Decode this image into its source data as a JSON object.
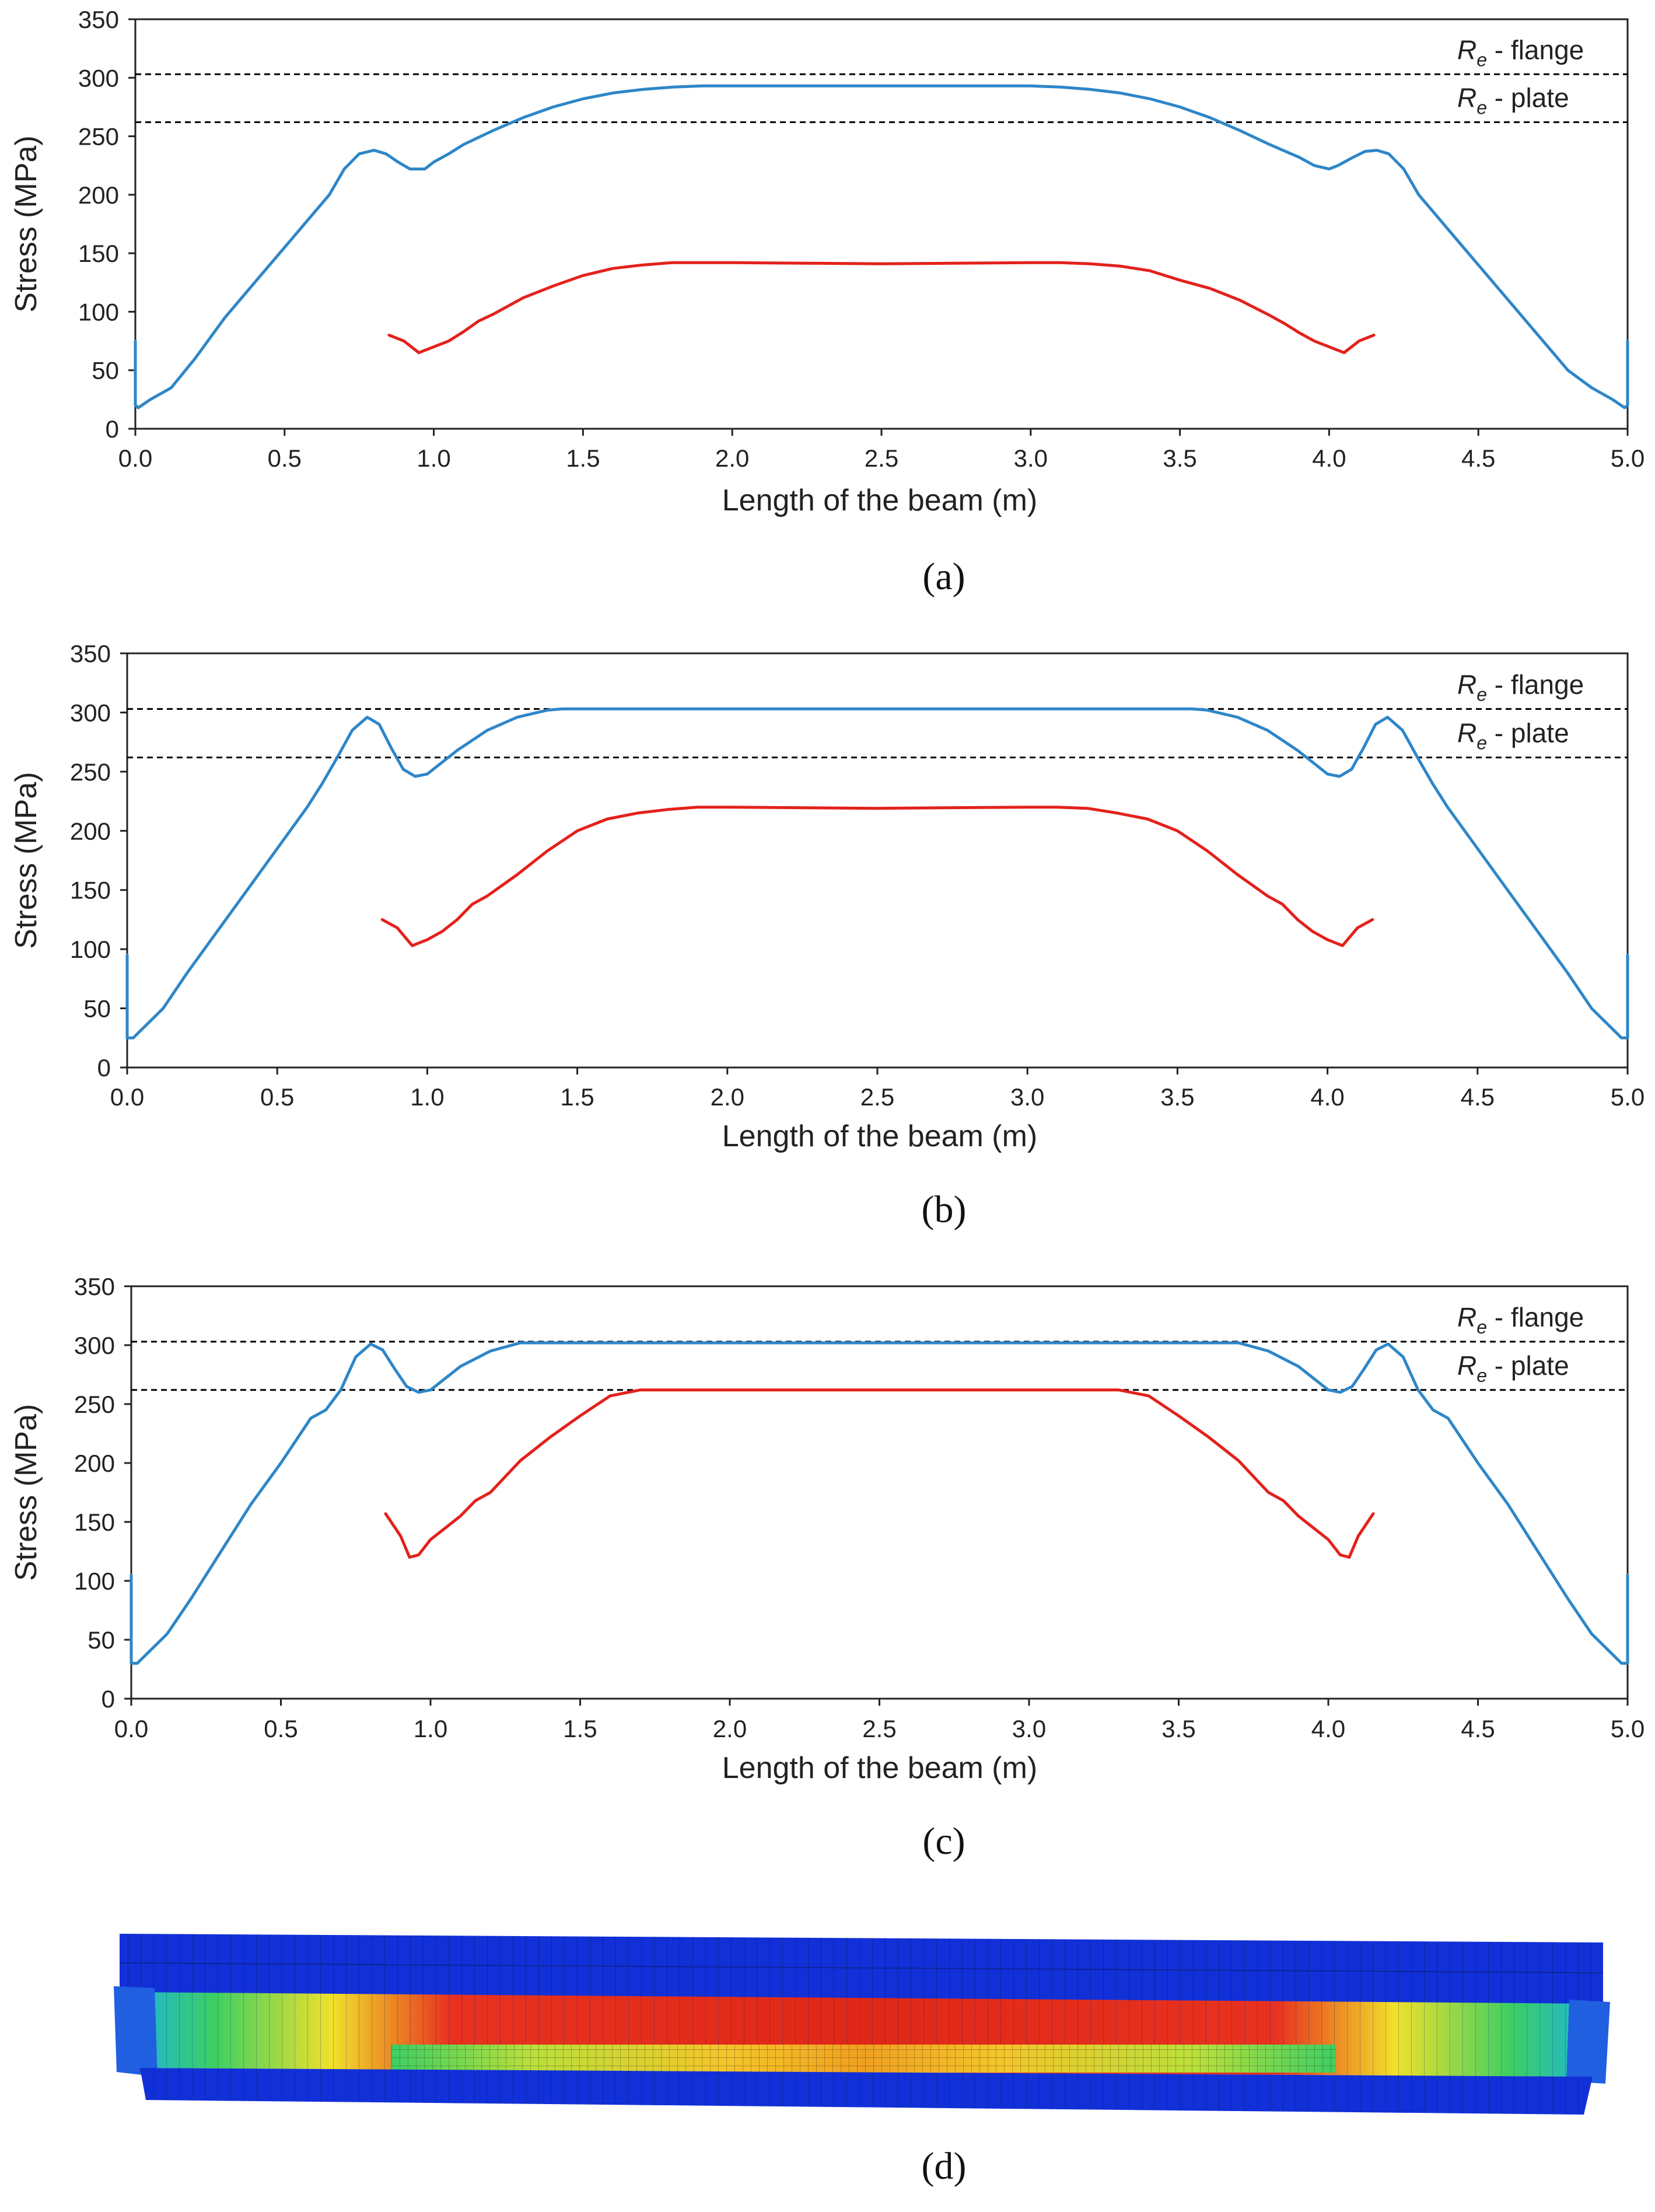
{
  "chart_data": [
    {
      "type": "line",
      "panel": "(a)",
      "xlabel": "Length of the beam (m)",
      "ylabel": "Stress  (MPa)",
      "xlim": [
        0,
        5
      ],
      "ylim": [
        0,
        350
      ],
      "xticks": [
        0.0,
        0.5,
        1.0,
        1.5,
        2.0,
        2.5,
        3.0,
        3.5,
        4.0,
        4.5,
        5.0
      ],
      "yticks": [
        0,
        50,
        100,
        150,
        200,
        250,
        300,
        350
      ],
      "reference_lines": [
        {
          "symbol": "R",
          "subscript": "e",
          "label": " - flange",
          "value": 303
        },
        {
          "symbol": "R",
          "subscript": "e",
          "label": " - plate",
          "value": 262
        }
      ],
      "series": [
        {
          "color": "#2E86C8",
          "x": [
            0.0,
            0.0,
            0.01,
            0.05,
            0.12,
            0.2,
            0.3,
            0.4,
            0.5,
            0.6,
            0.65,
            0.7,
            0.75,
            0.8,
            0.84,
            0.88,
            0.92,
            0.97,
            1.0,
            1.05,
            1.1,
            1.2,
            1.3,
            1.4,
            1.5,
            1.6,
            1.7,
            1.8,
            1.9,
            2.0,
            2.5,
            3.0,
            3.1,
            3.2,
            3.3,
            3.4,
            3.5,
            3.6,
            3.7,
            3.8,
            3.9,
            3.95,
            4.0,
            4.03,
            4.08,
            4.12,
            4.16,
            4.2,
            4.25,
            4.3,
            4.35,
            4.4,
            4.5,
            4.6,
            4.7,
            4.8,
            4.88,
            4.95,
            4.99,
            5.0,
            5.0
          ],
          "y": [
            75,
            20,
            18,
            25,
            35,
            60,
            95,
            125,
            155,
            185,
            200,
            222,
            235,
            238,
            235,
            228,
            222,
            222,
            228,
            235,
            243,
            255,
            266,
            275,
            282,
            287,
            290,
            292,
            293,
            293,
            293,
            293,
            292,
            290,
            287,
            282,
            275,
            266,
            255,
            243,
            232,
            225,
            222,
            225,
            232,
            237,
            238,
            235,
            222,
            200,
            185,
            170,
            140,
            110,
            80,
            50,
            35,
            25,
            18,
            20,
            75
          ]
        },
        {
          "color": "#E3211C",
          "x": [
            0.85,
            0.9,
            0.95,
            1.0,
            1.05,
            1.1,
            1.15,
            1.2,
            1.3,
            1.4,
            1.5,
            1.6,
            1.7,
            1.8,
            1.9,
            2.0,
            2.5,
            3.0,
            3.1,
            3.2,
            3.3,
            3.4,
            3.5,
            3.6,
            3.7,
            3.8,
            3.85,
            3.9,
            3.95,
            4.0,
            4.05,
            4.1,
            4.15
          ],
          "y": [
            80,
            75,
            65,
            70,
            75,
            83,
            92,
            98,
            112,
            122,
            131,
            137,
            140,
            142,
            142,
            142,
            141,
            142,
            142,
            141,
            139,
            135,
            127,
            120,
            110,
            97,
            90,
            82,
            75,
            70,
            65,
            75,
            80
          ]
        }
      ]
    },
    {
      "type": "line",
      "panel": "(b)",
      "xlabel": "Length of the beam (m)",
      "ylabel": "Stress (MPa)",
      "xlim": [
        0,
        5
      ],
      "ylim": [
        0,
        350
      ],
      "xticks": [
        0.0,
        0.5,
        1.0,
        1.5,
        2.0,
        2.5,
        3.0,
        3.5,
        4.0,
        4.5,
        5.0
      ],
      "yticks": [
        0,
        50,
        100,
        150,
        200,
        250,
        300,
        350
      ],
      "reference_lines": [
        {
          "symbol": "R",
          "subscript": "e",
          "label": " - flange",
          "value": 303
        },
        {
          "symbol": "R",
          "subscript": "e",
          "label": " - plate",
          "value": 262
        }
      ],
      "series": [
        {
          "color": "#2E86C8",
          "x": [
            0.0,
            0.0,
            0.02,
            0.06,
            0.12,
            0.2,
            0.3,
            0.4,
            0.5,
            0.6,
            0.65,
            0.7,
            0.75,
            0.8,
            0.84,
            0.88,
            0.92,
            0.96,
            1.0,
            1.05,
            1.1,
            1.2,
            1.3,
            1.4,
            1.45,
            2.0,
            3.0,
            3.55,
            3.6,
            3.7,
            3.8,
            3.9,
            3.95,
            4.0,
            4.04,
            4.08,
            4.12,
            4.16,
            4.2,
            4.25,
            4.3,
            4.35,
            4.4,
            4.5,
            4.6,
            4.7,
            4.8,
            4.88,
            4.94,
            4.98,
            5.0,
            5.0
          ],
          "y": [
            95,
            25,
            25,
            35,
            50,
            80,
            115,
            150,
            185,
            220,
            240,
            262,
            285,
            296,
            290,
            270,
            252,
            246,
            248,
            258,
            268,
            285,
            296,
            302,
            303,
            303,
            303,
            303,
            302,
            296,
            285,
            268,
            258,
            248,
            246,
            252,
            270,
            290,
            296,
            285,
            262,
            240,
            220,
            185,
            150,
            115,
            80,
            50,
            35,
            25,
            25,
            95
          ]
        },
        {
          "color": "#E3211C",
          "x": [
            0.85,
            0.9,
            0.95,
            1.0,
            1.05,
            1.1,
            1.15,
            1.2,
            1.3,
            1.4,
            1.5,
            1.6,
            1.7,
            1.8,
            1.9,
            2.0,
            2.5,
            3.0,
            3.1,
            3.2,
            3.3,
            3.4,
            3.5,
            3.6,
            3.7,
            3.8,
            3.85,
            3.9,
            3.95,
            4.0,
            4.05,
            4.1,
            4.15
          ],
          "y": [
            125,
            118,
            103,
            108,
            115,
            125,
            138,
            145,
            163,
            183,
            200,
            210,
            215,
            218,
            220,
            220,
            219,
            220,
            220,
            219,
            215,
            210,
            200,
            183,
            163,
            145,
            138,
            125,
            115,
            108,
            103,
            118,
            125
          ]
        }
      ]
    },
    {
      "type": "line",
      "panel": "(c)",
      "xlabel": "Length of the beam (m)",
      "ylabel": "Stress (MPa)",
      "xlim": [
        0,
        5
      ],
      "ylim": [
        0,
        350
      ],
      "xticks": [
        0.0,
        0.5,
        1.0,
        1.5,
        2.0,
        2.5,
        3.0,
        3.5,
        4.0,
        4.5,
        5.0
      ],
      "yticks": [
        0,
        50,
        100,
        150,
        200,
        250,
        300,
        350
      ],
      "reference_lines": [
        {
          "symbol": "R",
          "subscript": "e",
          "label": " - flange",
          "value": 303
        },
        {
          "symbol": "R",
          "subscript": "e",
          "label": " - plate",
          "value": 262
        }
      ],
      "series": [
        {
          "color": "#2E86C8",
          "x": [
            0.0,
            0.0,
            0.02,
            0.06,
            0.12,
            0.2,
            0.3,
            0.4,
            0.5,
            0.6,
            0.65,
            0.7,
            0.75,
            0.8,
            0.84,
            0.88,
            0.92,
            0.96,
            1.0,
            1.05,
            1.1,
            1.2,
            1.3,
            2.0,
            3.0,
            3.7,
            3.8,
            3.9,
            3.95,
            4.0,
            4.04,
            4.08,
            4.12,
            4.16,
            4.2,
            4.25,
            4.3,
            4.35,
            4.4,
            4.5,
            4.6,
            4.7,
            4.8,
            4.88,
            4.94,
            4.98,
            5.0,
            5.0
          ],
          "y": [
            105,
            30,
            30,
            40,
            55,
            85,
            125,
            165,
            200,
            238,
            245,
            262,
            290,
            301,
            296,
            280,
            265,
            260,
            262,
            272,
            282,
            295,
            302,
            302,
            302,
            302,
            295,
            282,
            272,
            262,
            260,
            265,
            280,
            296,
            301,
            290,
            262,
            245,
            238,
            200,
            165,
            125,
            85,
            55,
            40,
            30,
            30,
            105
          ]
        },
        {
          "color": "#E3211C",
          "x": [
            0.85,
            0.9,
            0.93,
            0.96,
            1.0,
            1.05,
            1.1,
            1.15,
            1.2,
            1.3,
            1.4,
            1.5,
            1.6,
            1.7,
            2.0,
            3.0,
            3.3,
            3.4,
            3.5,
            3.6,
            3.7,
            3.8,
            3.85,
            3.9,
            3.95,
            4.0,
            4.04,
            4.07,
            4.1,
            4.15
          ],
          "y": [
            157,
            138,
            120,
            122,
            135,
            145,
            155,
            168,
            175,
            202,
            222,
            240,
            257,
            262,
            262,
            262,
            262,
            257,
            240,
            222,
            202,
            175,
            168,
            155,
            145,
            135,
            122,
            120,
            138,
            157
          ]
        }
      ]
    }
  ],
  "panel_labels": [
    "(a)",
    "(b)",
    "(c)",
    "(d)"
  ],
  "colors": {
    "axis": "#222222",
    "reference_line": "#000000"
  }
}
